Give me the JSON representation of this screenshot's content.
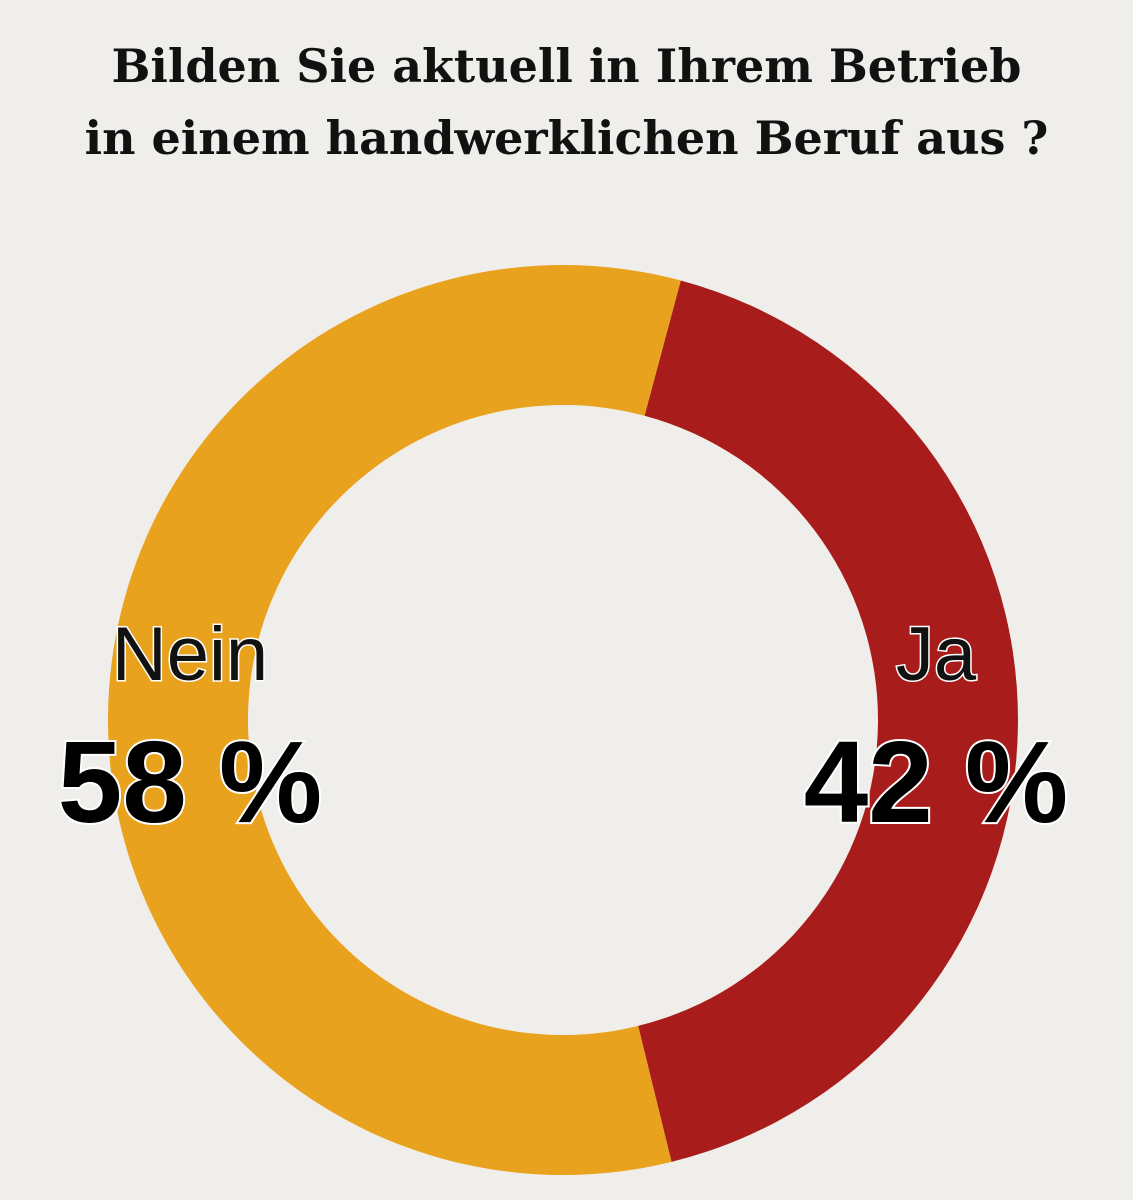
{
  "chart_data": {
    "type": "pie",
    "variant": "donut",
    "title": {
      "line1": "Bilden Sie aktuell in Ihrem Betrieb",
      "line2": "in einem handwerklichen Beruf aus ?"
    },
    "slices": [
      {
        "key": "ja",
        "label": "Ja",
        "value": 42,
        "value_label": "42 %",
        "color": "#a81c1b"
      },
      {
        "key": "nein",
        "label": "Nein",
        "value": 58,
        "value_label": "58 %",
        "color": "#e9a21e"
      }
    ],
    "legend": "labels on slices",
    "grid": false
  },
  "background_color": "#f0eeeb"
}
